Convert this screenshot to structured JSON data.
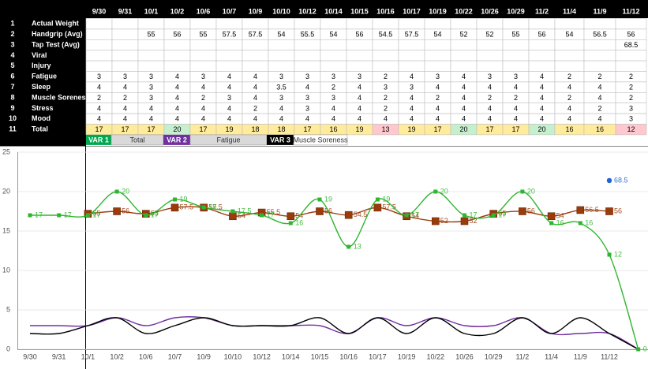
{
  "table": {
    "columns": [
      "9/30",
      "9/31",
      "10/1",
      "10/2",
      "10/6",
      "10/7",
      "10/9",
      "10/10",
      "10/12",
      "10/14",
      "10/15",
      "10/16",
      "10/17",
      "10/19",
      "10/22",
      "10/26",
      "10/29",
      "11/2",
      "11/4",
      "11/9",
      "11/12"
    ],
    "rows": [
      {
        "number": 1,
        "label": "Actual Weight",
        "cells": [
          null,
          null,
          null,
          null,
          null,
          null,
          null,
          null,
          null,
          null,
          null,
          null,
          null,
          null,
          null,
          null,
          null,
          null,
          null,
          null,
          null
        ]
      },
      {
        "number": 2,
        "label": "Handgrip (Avg)",
        "cells": [
          null,
          null,
          55,
          56,
          55,
          57.5,
          57.5,
          54,
          55.5,
          54,
          56,
          54.5,
          57.5,
          54,
          52,
          52,
          55,
          56,
          54,
          56.5,
          56
        ]
      },
      {
        "number": 3,
        "label": "Tap Test (Avg)",
        "cells": [
          null,
          null,
          null,
          null,
          null,
          null,
          null,
          null,
          null,
          null,
          null,
          null,
          null,
          null,
          null,
          null,
          null,
          null,
          null,
          null,
          68.5
        ]
      },
      {
        "number": 4,
        "label": "Viral",
        "cells": [
          null,
          null,
          null,
          null,
          null,
          null,
          null,
          null,
          null,
          null,
          null,
          null,
          null,
          null,
          null,
          null,
          null,
          null,
          null,
          null,
          null
        ]
      },
      {
        "number": 5,
        "label": "Injury",
        "cells": [
          null,
          null,
          null,
          null,
          null,
          null,
          null,
          null,
          null,
          null,
          null,
          null,
          null,
          null,
          null,
          null,
          null,
          null,
          null,
          null,
          null
        ]
      },
      {
        "number": 6,
        "label": "Fatigue",
        "cells": [
          3,
          3,
          3,
          4,
          3,
          4,
          4,
          3,
          3,
          3,
          3,
          2,
          4,
          3,
          4,
          3,
          3,
          4,
          2,
          2,
          2
        ]
      },
      {
        "number": 7,
        "label": "Sleep",
        "cells": [
          4,
          4,
          3,
          4,
          4,
          4,
          4,
          3.5,
          4,
          2,
          4,
          3,
          3,
          4,
          4,
          4,
          4,
          4,
          4,
          4,
          2
        ]
      },
      {
        "number": 8,
        "label": "Muscle Soreness",
        "cells": [
          2,
          2,
          3,
          4,
          2,
          3,
          4,
          3,
          3,
          3,
          4,
          2,
          4,
          2,
          4,
          2,
          2,
          4,
          2,
          4,
          2
        ]
      },
      {
        "number": 9,
        "label": "Stress",
        "cells": [
          4,
          4,
          4,
          4,
          4,
          4,
          2,
          4,
          3,
          4,
          4,
          2,
          4,
          4,
          4,
          4,
          4,
          4,
          4,
          2,
          3
        ]
      },
      {
        "number": 10,
        "label": "Mood",
        "cells": [
          4,
          4,
          4,
          4,
          4,
          4,
          4,
          4,
          4,
          4,
          4,
          4,
          4,
          4,
          4,
          4,
          4,
          4,
          4,
          4,
          3
        ]
      },
      {
        "number": 11,
        "label": "Total",
        "cells": [
          17,
          17,
          17,
          20,
          17,
          19,
          18,
          18,
          17,
          16,
          19,
          13,
          19,
          17,
          20,
          17,
          17,
          20,
          16,
          16,
          12
        ],
        "fills": [
          "#ffeb9c",
          "#ffeb9c",
          "#ffeb9c",
          "#c6efce",
          "#ffeb9c",
          "#ffeb9c",
          "#ffeb9c",
          "#ffeb9c",
          "#ffeb9c",
          "#ffeb9c",
          "#ffeb9c",
          "#ffc7ce",
          "#ffeb9c",
          "#ffeb9c",
          "#c6efce",
          "#ffeb9c",
          "#ffeb9c",
          "#c6efce",
          "#ffeb9c",
          "#ffeb9c",
          "#ffc7ce"
        ]
      }
    ]
  },
  "legend": [
    {
      "tag": "VAR 1",
      "tag_color": "#00a94f",
      "fill": "#d9d9d9"
    },
    {
      "tag": "VAR 2",
      "tag_color": "#7030a0",
      "fill": "#d9d9d9"
    },
    {
      "tag": "VAR 3",
      "tag_color": "#000000",
      "fill": "#ffffff"
    }
  ],
  "chart_data": {
    "type": "line",
    "categories": [
      "9/30",
      "9/31",
      "10/1",
      "10/2",
      "10/6",
      "10/7",
      "10/9",
      "10/10",
      "10/12",
      "10/14",
      "10/15",
      "10/16",
      "10/17",
      "10/19",
      "10/22",
      "10/26",
      "10/29",
      "11/2",
      "11/4",
      "11/9",
      "11/12",
      null
    ],
    "ylim": [
      0,
      25
    ],
    "yticks": [
      0,
      5,
      10,
      15,
      20,
      25
    ],
    "y2lim": [
      0,
      80
    ],
    "grid": true,
    "series": [
      {
        "name": "Total",
        "color": "#2fb52f",
        "marker": "square",
        "labels": true,
        "values": [
          17,
          17,
          17,
          20,
          17,
          19,
          18,
          17.5,
          17,
          16,
          19,
          13,
          19,
          17,
          20,
          17,
          17,
          20,
          16,
          16,
          12,
          0
        ]
      },
      {
        "name": "Fatigue",
        "color": "#7030a0",
        "values": [
          3,
          3,
          3,
          4,
          3,
          4,
          4,
          3,
          3,
          3,
          3,
          2,
          4,
          3,
          4,
          3,
          3,
          4,
          2,
          2,
          2,
          0
        ]
      },
      {
        "name": "Muscle Soreness",
        "color": "#000000",
        "values": [
          2,
          2,
          3,
          4,
          2,
          3,
          4,
          3,
          3,
          3,
          4,
          2,
          4,
          2,
          4,
          2,
          2,
          4,
          2,
          4,
          2,
          0
        ]
      },
      {
        "color": "#9a3b0c",
        "axis": "y2",
        "marker": "big-square",
        "labels": true,
        "values": [
          null,
          null,
          55,
          56,
          55,
          57.5,
          57.5,
          54,
          55.5,
          54,
          56,
          54.5,
          57.5,
          54,
          52,
          52,
          55,
          56,
          54,
          56.5,
          56,
          null
        ]
      },
      {
        "color": "#1f66d1",
        "axis": "y2",
        "marker": "circle",
        "labels": true,
        "values": [
          null,
          null,
          null,
          null,
          null,
          null,
          null,
          null,
          null,
          null,
          null,
          null,
          null,
          null,
          null,
          null,
          null,
          null,
          null,
          null,
          68.5,
          null
        ]
      }
    ]
  }
}
